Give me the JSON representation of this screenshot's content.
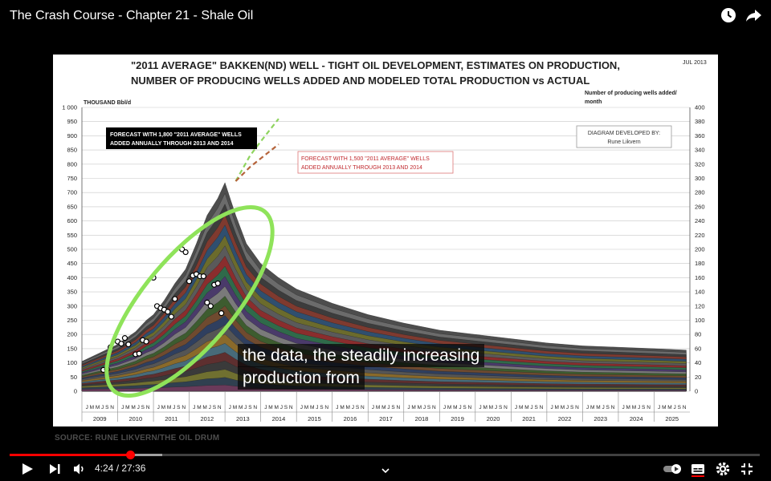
{
  "video": {
    "title": "The Crash Course - Chapter 21 - Shale Oil"
  },
  "player": {
    "current_time": "4:24",
    "duration": "27:36",
    "time_separator": " / ",
    "progress_fraction": 0.16
  },
  "caption": {
    "line1": "the data, the steadily increasing",
    "line2": "production from"
  },
  "slide": {
    "source": "SOURCE: RUNE LIKVERN/THE OIL DRUM",
    "title_line1": "\"2011 AVERAGE\" BAKKEN(ND) WELL - TIGHT OIL DEVELOPMENT, ESTIMATES ON PRODUCTION,",
    "title_line2": "NUMBER OF PRODUCING WELLS ADDED AND MODELED TOTAL PRODUCTION vs ACTUAL",
    "date": "JUL 2013",
    "credit_line1": "DIAGRAM DEVELOPED BY:",
    "credit_line2": "Rune Likvern",
    "forecast1_line1": "FORECAST WITH 1,800 \"2011 AVERAGE\" WELLS",
    "forecast1_line2": "ADDED ANNUALLY THROUGH 2013 AND 2014",
    "forecast2_line1": "FORECAST WITH 1,500 \"2011 AVERAGE\" WELLS",
    "forecast2_line2": "ADDED ANNUALLY THROUGH 2013 AND 2014"
  },
  "chart_data": {
    "type": "area",
    "ylabel": "THOUSAND Bbl/d",
    "y2label_line1": "Number of producing wells added/",
    "y2label_line2": "month",
    "ylim": [
      0,
      1000
    ],
    "y2lim": [
      0,
      400
    ],
    "yticks": [
      "1 000",
      "950",
      "900",
      "850",
      "800",
      "750",
      "700",
      "650",
      "600",
      "550",
      "500",
      "450",
      "400",
      "350",
      "300",
      "250",
      "200",
      "150",
      "100",
      "50",
      "0"
    ],
    "y2ticks": [
      "400",
      "380",
      "360",
      "340",
      "320",
      "300",
      "280",
      "260",
      "240",
      "220",
      "200",
      "180",
      "160",
      "140",
      "120",
      "100",
      "80",
      "60",
      "40",
      "20",
      "0"
    ],
    "years": [
      "2009",
      "2010",
      "2011",
      "2012",
      "2013",
      "2014",
      "2015",
      "2016",
      "2017",
      "2018",
      "2019",
      "2020",
      "2021",
      "2022",
      "2023",
      "2024",
      "2025"
    ],
    "month_letters": "J M M J S N",
    "total_production": {
      "x": [
        2009.0,
        2009.5,
        2010.0,
        2010.5,
        2010.8,
        2011.0,
        2011.3,
        2011.6,
        2011.9,
        2012.2,
        2012.5,
        2012.8,
        2013.0,
        2013.3,
        2013.6,
        2014.0,
        2014.5,
        2015.0,
        2016.0,
        2017.0,
        2018.0,
        2019.0,
        2020.0,
        2021.0,
        2022.0,
        2023.0,
        2024.0,
        2025.0,
        2025.9
      ],
      "y": [
        105,
        135,
        165,
        210,
        250,
        270,
        320,
        380,
        430,
        520,
        620,
        680,
        735,
        620,
        520,
        450,
        400,
        360,
        310,
        270,
        240,
        215,
        200,
        185,
        170,
        160,
        155,
        150,
        145
      ]
    },
    "actual_wells_added": {
      "x": [
        2009.6,
        2009.7,
        2009.8,
        2010.0,
        2010.1,
        2010.2,
        2010.3,
        2010.5,
        2010.6,
        2010.7,
        2010.8,
        2011.0,
        2011.1,
        2011.2,
        2011.3,
        2011.4,
        2011.5,
        2011.6,
        2011.8,
        2011.9,
        2012.0,
        2012.1,
        2012.2,
        2012.3,
        2012.4,
        2012.5,
        2012.6,
        2012.7,
        2012.8,
        2012.9
      ],
      "y": [
        30,
        31,
        62,
        70,
        67,
        75,
        66,
        52,
        53,
        72,
        70,
        160,
        120,
        117,
        115,
        112,
        105,
        130,
        200,
        196,
        155,
        163,
        165,
        162,
        162,
        125,
        120,
        150,
        152,
        110
      ]
    },
    "forecast_1800": {
      "x": [
        2013.3,
        2013.7,
        2014.0,
        2014.5
      ],
      "y": [
        740,
        830,
        880,
        960
      ]
    },
    "forecast_1500": {
      "x": [
        2013.3,
        2013.7,
        2014.0,
        2014.5
      ],
      "y": [
        740,
        790,
        820,
        870
      ]
    },
    "highlight_ellipse": "green",
    "colors": {
      "highlight": "#8fe35a",
      "forecast_1800": "#8fd45f",
      "forecast_1500": "#b5633a",
      "grid": "#c8c8c8"
    }
  }
}
